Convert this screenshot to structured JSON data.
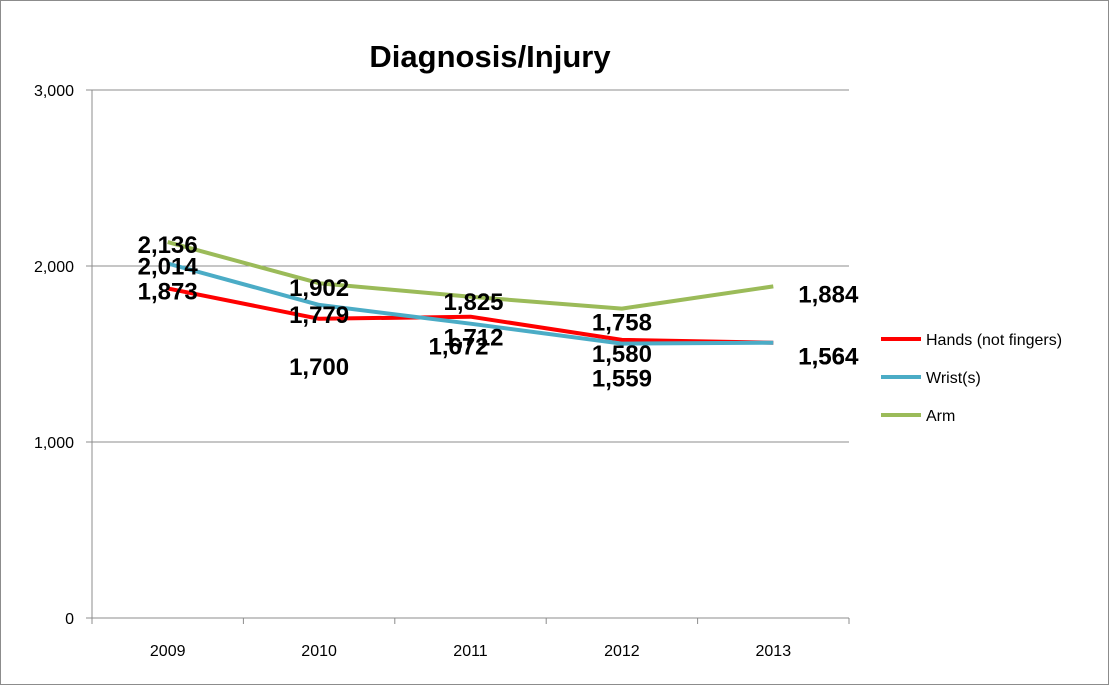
{
  "chart_data": {
    "type": "line",
    "title": "Diagnosis/Injury",
    "xlabel": "",
    "ylabel": "",
    "categories": [
      "2009",
      "2010",
      "2011",
      "2012",
      "2013"
    ],
    "ylim": [
      0,
      3000
    ],
    "yticks": [
      0,
      1000,
      2000,
      3000
    ],
    "ytick_labels": [
      "0",
      "1,000",
      "2,000",
      "3,000"
    ],
    "grid": true,
    "legend_position": "right",
    "series": [
      {
        "name": "Hands (not fingers)",
        "color": "#ff0000",
        "values": [
          1873,
          1700,
          1712,
          1580,
          1564
        ],
        "labels": [
          "1,873",
          "1,700",
          "1,712",
          "1,580",
          "1,564"
        ]
      },
      {
        "name": "Wrist(s)",
        "color": "#4bacc6",
        "values": [
          2014,
          1779,
          1672,
          1559,
          1564
        ],
        "labels": [
          "2,014",
          "1,779",
          "1,672",
          "1,559",
          "1,564"
        ]
      },
      {
        "name": "Arm",
        "color": "#9bbb59",
        "values": [
          2136,
          1902,
          1825,
          1758,
          1884
        ],
        "labels": [
          "2,136",
          "1,902",
          "1,825",
          "1,758",
          "1,884"
        ]
      }
    ]
  }
}
